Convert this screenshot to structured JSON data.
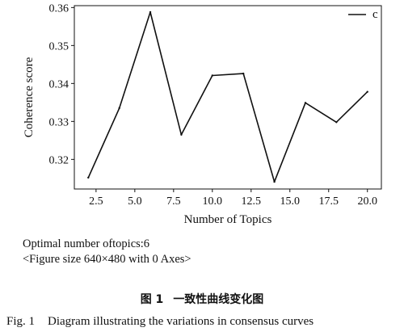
{
  "chart_data": {
    "type": "line",
    "x": [
      2,
      4,
      6,
      8,
      10,
      12,
      14,
      16,
      18,
      20
    ],
    "series": [
      {
        "name": "c",
        "values": [
          0.3152,
          0.3335,
          0.3588,
          0.3265,
          0.3421,
          0.3426,
          0.3141,
          0.3349,
          0.3298,
          0.3378
        ]
      }
    ],
    "xlabel": "Number of Topics",
    "ylabel": "Coherence score",
    "xticks": [
      "2.5",
      "5.0",
      "7.5",
      "10.0",
      "12.5",
      "15.0",
      "17.5",
      "20.0"
    ],
    "yticks": [
      "0.32",
      "0.33",
      "0.34",
      "0.35",
      "0.36"
    ],
    "xlim": [
      1.1,
      20.9
    ],
    "ylim": [
      0.3122,
      0.3605
    ],
    "legend_placement": "top-right",
    "grid": false,
    "line_color": "#111111"
  },
  "notes": {
    "line1": "Optimal number oftopics:6",
    "line2": "<Figure size 640×480 with 0 Axes>"
  },
  "caption": {
    "cn_number": "图 1",
    "cn_text": "一致性曲线变化图",
    "en_number": "Fig. 1",
    "en_text": "Diagram illustrating the variations in consensus curves"
  }
}
